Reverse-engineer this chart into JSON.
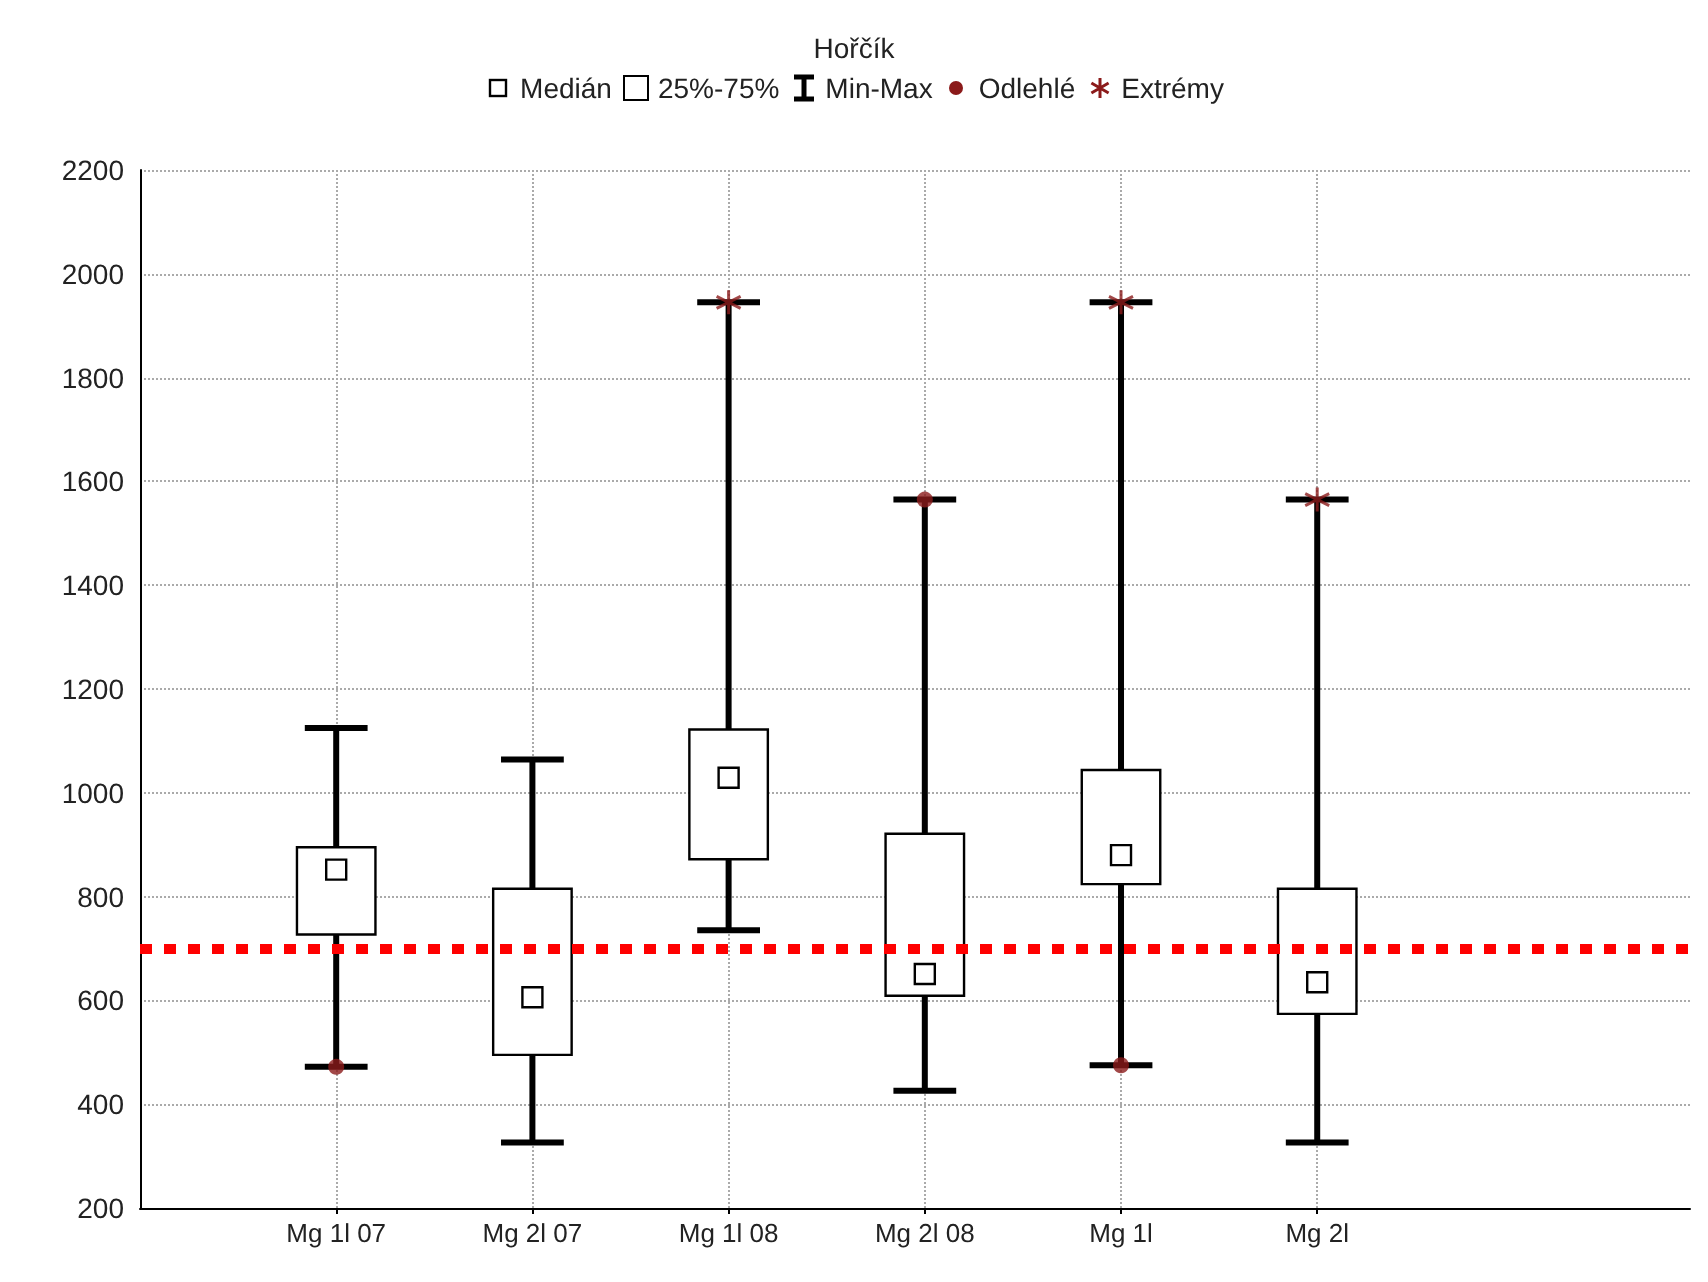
{
  "chart_data": {
    "type": "box",
    "title": "Hořčík",
    "categories": [
      "Mg 1l 07",
      "Mg 2l 07",
      "Mg 1l 08",
      "Mg 2l 08",
      "Mg 1l",
      "Mg 2l"
    ],
    "ylim": [
      200,
      2200
    ],
    "yticks": [
      200,
      400,
      600,
      800,
      1000,
      1200,
      1400,
      1600,
      1800,
      2000,
      2200
    ],
    "grid": true,
    "legend": "top",
    "annotations": [
      "Medián",
      "Min-Max"
    ],
    "ref_lines": [
      {
        "axis": "y",
        "value": 700,
        "color": "#ff0000",
        "line_style": "dashed"
      }
    ],
    "series": [
      {
        "name": "25%-75%",
        "color": "#000000",
        "boxes": [
          {
            "low": 472,
            "q1": 727,
            "median": 852,
            "q3": 895,
            "high": 1125
          },
          {
            "low": 326,
            "q1": 495,
            "median": 606,
            "q3": 815,
            "high": 1064
          },
          {
            "low": 735,
            "q1": 872,
            "median": 1029,
            "q3": 1122,
            "high": 1945
          },
          {
            "low": 426,
            "q1": 609,
            "median": 651,
            "q3": 921,
            "high": 1565
          },
          {
            "low": 475,
            "q1": 824,
            "median": 880,
            "q3": 1044,
            "high": 1945
          },
          {
            "low": 326,
            "q1": 574,
            "median": 635,
            "q3": 815,
            "high": 1565
          }
        ]
      },
      {
        "type": "scatter",
        "name": "Odlehlé",
        "color": "#8b1a1a",
        "marker": "circle",
        "x": [
          "Mg 1l 07",
          "Mg 2l 08",
          "Mg 1l"
        ],
        "values": [
          472,
          1565,
          475
        ]
      },
      {
        "type": "scatter",
        "name": "Extrémy",
        "color": "#8b1a1a",
        "marker": "cross",
        "x": [
          "Mg 1l 08",
          "Mg 1l",
          "Mg 2l"
        ],
        "values": [
          1945,
          1945,
          1565
        ]
      }
    ]
  }
}
